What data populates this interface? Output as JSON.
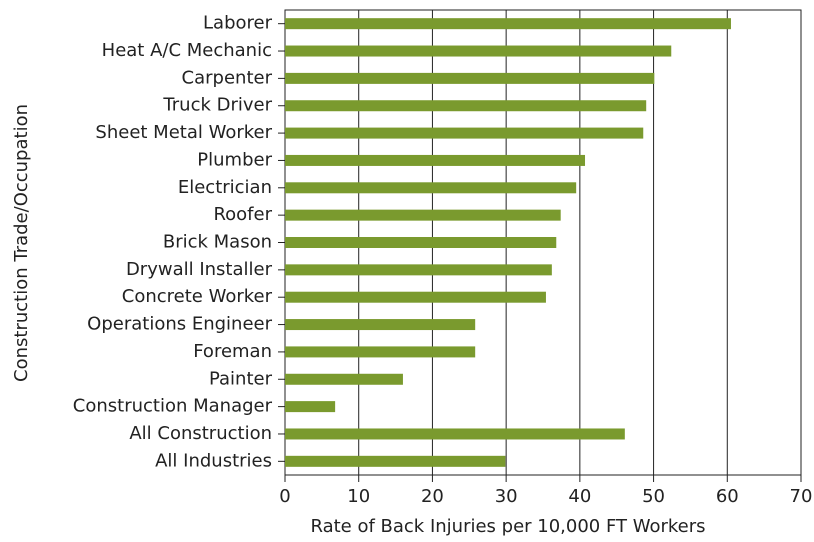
{
  "chart_data": {
    "type": "barh",
    "xlabel": "Rate of Back Injuries per 10,000 FT Workers",
    "ylabel": "Construction Trade/Occupation",
    "categories": [
      "Laborer",
      "Heat A/C Mechanic",
      "Carpenter",
      "Truck Driver",
      "Sheet Metal Worker",
      "Plumber",
      "Electrician",
      "Roofer",
      "Brick Mason",
      "Drywall Installer",
      "Concrete Worker",
      "Operations Engineer",
      "Foreman",
      "Painter",
      "Construction Manager",
      "All Construction",
      "All Industries"
    ],
    "values": [
      60.5,
      52.4,
      50.1,
      49,
      48.6,
      40.7,
      39.5,
      37.4,
      36.8,
      36.2,
      35.4,
      25.8,
      25.8,
      16,
      6.8,
      46.1,
      29.9
    ],
    "color": "#7a9a2e",
    "xlim": [
      0,
      70
    ],
    "xticks": [
      0,
      10,
      20,
      30,
      40,
      50,
      60,
      70
    ],
    "grid": true
  }
}
